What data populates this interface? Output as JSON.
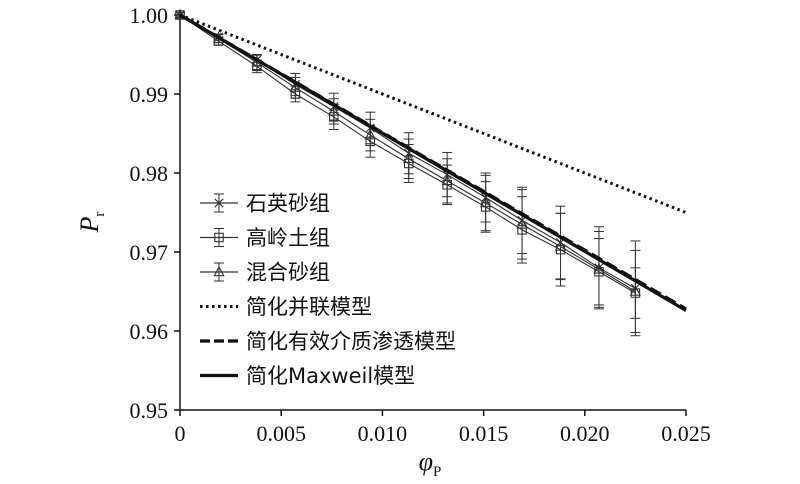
{
  "chart_data": {
    "type": "line",
    "title": "",
    "xlabel": "φ",
    "xlabel_subscript": "P",
    "ylabel": "P",
    "ylabel_subscript": "r",
    "xlim": [
      0,
      0.025
    ],
    "ylim": [
      0.95,
      1.0
    ],
    "x_ticks": [
      "0",
      "0.005",
      "0.010",
      "0.015",
      "0.020",
      "0.025"
    ],
    "y_ticks": [
      "0.95",
      "0.96",
      "0.97",
      "0.98",
      "0.99",
      "1.00"
    ],
    "grid": false,
    "legend_position": "bottom-left",
    "series": [
      {
        "name": "石英砂组",
        "style": "marker-star",
        "color": "#333333",
        "x": [
          0,
          0.0019,
          0.0038,
          0.0057,
          0.0076,
          0.0094,
          0.0113,
          0.0132,
          0.0151,
          0.0169,
          0.0188,
          0.0207,
          0.0225
        ],
        "y": [
          1.0,
          0.9972,
          0.9943,
          0.9912,
          0.9884,
          0.9857,
          0.9825,
          0.9798,
          0.9769,
          0.974,
          0.9712,
          0.968,
          0.9654
        ],
        "err": [
          0.0003,
          0.0004,
          0.0007,
          0.0014,
          0.0017,
          0.002,
          0.0026,
          0.0028,
          0.0031,
          0.0042,
          0.0046,
          0.0052,
          0.006
        ]
      },
      {
        "name": "高岭土组",
        "style": "marker-square",
        "color": "#333333",
        "x": [
          0,
          0.0019,
          0.0038,
          0.0057,
          0.0076,
          0.0094,
          0.0113,
          0.0132,
          0.0151,
          0.0169,
          0.0188,
          0.0207,
          0.0225
        ],
        "y": [
          1.0,
          0.9967,
          0.9935,
          0.99,
          0.9871,
          0.984,
          0.9812,
          0.9785,
          0.9757,
          0.9728,
          0.9703,
          0.9675,
          0.9648
        ],
        "err": [
          0.0003,
          0.0005,
          0.0008,
          0.001,
          0.0016,
          0.002,
          0.0024,
          0.0025,
          0.0032,
          0.0042,
          0.0046,
          0.0042,
          0.0032
        ]
      },
      {
        "name": "混合砂组",
        "style": "marker-triangle",
        "color": "#333333",
        "x": [
          0,
          0.0019,
          0.0038,
          0.0057,
          0.0076,
          0.0094,
          0.0113,
          0.0132,
          0.0151,
          0.0169,
          0.0188,
          0.0207,
          0.0225
        ],
        "y": [
          1.0,
          0.997,
          0.994,
          0.9908,
          0.9878,
          0.9848,
          0.9818,
          0.979,
          0.9762,
          0.9735,
          0.9707,
          0.9678,
          0.965
        ],
        "err": [
          0.0003,
          0.0005,
          0.0009,
          0.0013,
          0.0016,
          0.002,
          0.0025,
          0.0028,
          0.0035,
          0.0044,
          0.0042,
          0.0048,
          0.0052
        ]
      },
      {
        "name": "简化并联模型",
        "style": "dotted",
        "color": "#111111",
        "x": [
          0,
          0.025
        ],
        "y": [
          1.0,
          0.975
        ]
      },
      {
        "name": "简化有效介质渗透模型",
        "style": "dashed",
        "color": "#111111",
        "x": [
          0,
          0.025
        ],
        "y": [
          1.0,
          0.9628
        ]
      },
      {
        "name": "简化Maxweil模型",
        "style": "solid",
        "color": "#111111",
        "x": [
          0,
          0.025
        ],
        "y": [
          1.0,
          0.9626
        ]
      }
    ]
  }
}
